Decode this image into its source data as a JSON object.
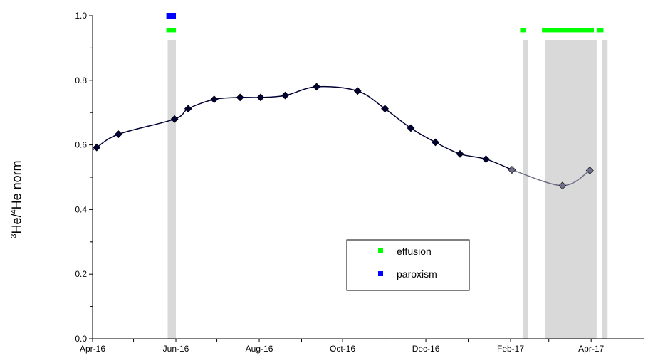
{
  "chart_data": {
    "type": "line",
    "title": "",
    "xlabel": "",
    "ylabel": {
      "mass3": "3",
      "el1": "He/",
      "mass4": "4",
      "el2": "He  norm"
    },
    "ylim": [
      0.0,
      1.0
    ],
    "yticks": [
      "0.0",
      "0.2",
      "0.4",
      "0.6",
      "0.8",
      "1.0"
    ],
    "xlim": [
      "2016-04-01",
      "2017-05-10"
    ],
    "xticks": [
      {
        "date": "2016-04-01",
        "label": "Apr-16"
      },
      {
        "date": "2016-06-01",
        "label": "Jun-16"
      },
      {
        "date": "2016-08-01",
        "label": "Aug-16"
      },
      {
        "date": "2016-10-01",
        "label": "Oct-16"
      },
      {
        "date": "2016-12-01",
        "label": "Dec-16"
      },
      {
        "date": "2017-02-01",
        "label": "Feb-17"
      },
      {
        "date": "2017-04-01",
        "label": "Apr-17"
      }
    ],
    "minor_xticks": [
      "2016-05-01",
      "2016-07-01",
      "2016-09-01",
      "2016-11-01",
      "2017-01-01",
      "2017-03-01"
    ],
    "series": [
      {
        "name": "",
        "color": "#000033",
        "points": [
          {
            "x": "2016-04-04",
            "y": 0.592
          },
          {
            "x": "2016-04-20",
            "y": 0.633
          },
          {
            "x": "2016-05-31",
            "y": 0.68
          },
          {
            "x": "2016-06-10",
            "y": 0.712
          },
          {
            "x": "2016-06-29",
            "y": 0.741
          },
          {
            "x": "2016-07-18",
            "y": 0.747
          },
          {
            "x": "2016-08-02",
            "y": 0.747
          },
          {
            "x": "2016-08-20",
            "y": 0.753
          },
          {
            "x": "2016-09-12",
            "y": 0.78
          },
          {
            "x": "2016-10-12",
            "y": 0.767
          },
          {
            "x": "2016-11-01",
            "y": 0.712
          },
          {
            "x": "2016-11-20",
            "y": 0.652
          },
          {
            "x": "2016-12-08",
            "y": 0.608
          },
          {
            "x": "2016-12-26",
            "y": 0.572
          },
          {
            "x": "2017-01-14",
            "y": 0.556
          },
          {
            "x": "2017-02-02",
            "y": 0.523
          }
        ]
      },
      {
        "name": "",
        "color": "#6e6e88",
        "points": [
          {
            "x": "2017-02-02",
            "y": 0.523
          },
          {
            "x": "2017-03-11",
            "y": 0.474
          },
          {
            "x": "2017-03-31",
            "y": 0.521
          }
        ]
      }
    ],
    "shaded_periods": [
      {
        "start": "2016-05-26",
        "end": "2016-06-01"
      },
      {
        "start": "2017-02-10",
        "end": "2017-02-14"
      },
      {
        "start": "2017-02-26",
        "end": "2017-04-05"
      },
      {
        "start": "2017-04-09",
        "end": "2017-04-13"
      }
    ],
    "events": [
      {
        "type": "paroxism",
        "y": 1.0,
        "color": "#0000ff",
        "start": "2016-05-25",
        "end": "2016-06-01"
      },
      {
        "type": "effusion",
        "y": 0.955,
        "color": "#00ff00",
        "start": "2016-05-25",
        "end": "2016-06-01"
      },
      {
        "type": "effusion",
        "y": 0.955,
        "color": "#00ff00",
        "start": "2017-02-08",
        "end": "2017-02-12"
      },
      {
        "type": "effusion",
        "y": 0.955,
        "color": "#00ff00",
        "start": "2017-02-24",
        "end": "2017-04-03"
      },
      {
        "type": "effusion",
        "y": 0.955,
        "color": "#00ff00",
        "start": "2017-04-05",
        "end": "2017-04-10"
      }
    ],
    "legend": {
      "position": "bottom-center",
      "entries": [
        {
          "label": "effusion",
          "color": "#00ff00"
        },
        {
          "label": "paroxism",
          "color": "#0000ff"
        }
      ]
    },
    "shade_color": "#d9d9d9",
    "grid": false
  }
}
